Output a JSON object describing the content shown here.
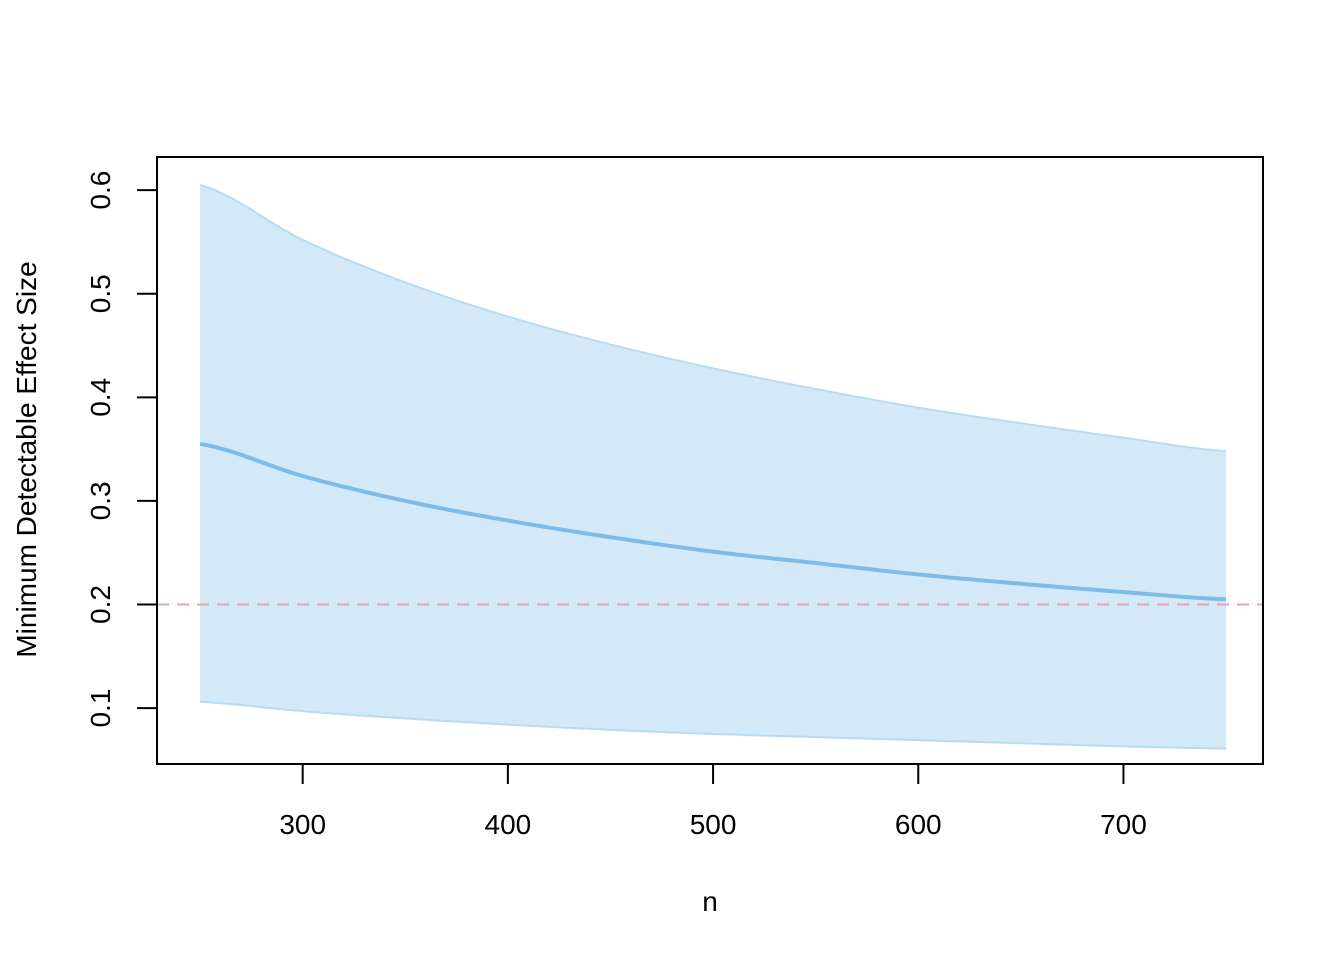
{
  "chart_data": {
    "type": "area",
    "title": "",
    "xlabel": "n",
    "ylabel": "Minimum Detectable Effect Size",
    "xlim": [
      229,
      768
    ],
    "ylim": [
      0.046,
      0.632
    ],
    "x_ticks": [
      300,
      400,
      500,
      600,
      700
    ],
    "y_ticks": [
      0.1,
      0.2,
      0.3,
      0.4,
      0.5,
      0.6
    ],
    "x": [
      250,
      300,
      350,
      400,
      450,
      500,
      550,
      600,
      650,
      700,
      750
    ],
    "series": [
      {
        "role": "estimate",
        "values": [
          0.355,
          0.324,
          0.3,
          0.281,
          0.265,
          0.251,
          0.24,
          0.229,
          0.22,
          0.212,
          0.205
        ]
      },
      {
        "role": "upper-bound",
        "values": [
          0.605,
          0.552,
          0.511,
          0.478,
          0.451,
          0.428,
          0.408,
          0.39,
          0.375,
          0.361,
          0.348
        ]
      },
      {
        "role": "lower-bound",
        "values": [
          0.106,
          0.097,
          0.09,
          0.084,
          0.079,
          0.075,
          0.072,
          0.069,
          0.066,
          0.063,
          0.061
        ]
      }
    ],
    "reference_line": {
      "y": 0.2,
      "style": "dashed",
      "color": "#E8A3B4"
    },
    "colors": {
      "band_fill": "#D4E9F8",
      "band_edge": "#B8DBF4",
      "line": "#7DBBE8",
      "axis": "#000000"
    },
    "grid": false,
    "legend": "none"
  }
}
